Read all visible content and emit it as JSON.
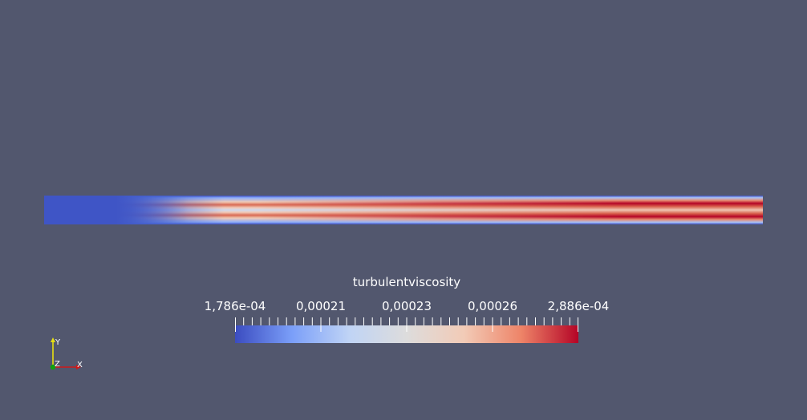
{
  "colormap": {
    "title": "turbulentviscosity",
    "tick_labels": [
      "1,786e-04",
      "0,00021",
      "0,00023",
      "0,00026",
      "2,886e-04"
    ],
    "range": [
      0.0001786,
      0.0002886
    ],
    "stops": [
      "#3b4cc0",
      "#7b9ff9",
      "#c0d4f5",
      "#dddcdc",
      "#f2cbb7",
      "#ee8468",
      "#b40426"
    ]
  },
  "orientation_axes": {
    "y_label": "Y",
    "z_label": "Z",
    "x_label": "X",
    "colors": {
      "x": "#d01818",
      "y": "#e8e010",
      "z": "#10a010"
    }
  },
  "background_color": "#52576e"
}
